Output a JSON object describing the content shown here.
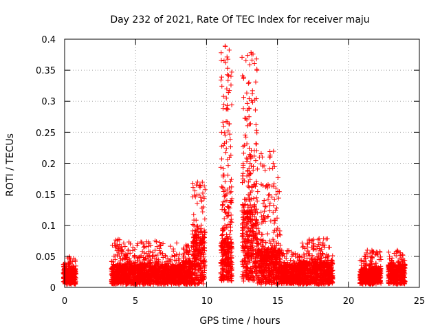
{
  "chart_data": {
    "type": "scatter",
    "title": "Day 232 of 2021, Rate Of TEC Index for receiver maju",
    "xlabel": "GPS time / hours",
    "ylabel": "ROTI / TECUs",
    "xlim": [
      0,
      25
    ],
    "ylim": [
      0,
      0.4
    ],
    "xticks": [
      "0",
      "5",
      "10",
      "15",
      "20",
      "25"
    ],
    "yticks": [
      "0",
      "0.05",
      "0.1",
      "0.15",
      "0.2",
      "0.25",
      "0.3",
      "0.35",
      "0.4"
    ],
    "grid": true,
    "marker": "+",
    "color": "#ff0000",
    "clusters": [
      {
        "x": [
          -0.1,
          0.8
        ],
        "base": [
          0.005,
          0.03
        ],
        "peak": 0.05
      },
      {
        "x": [
          3.3,
          4.4
        ],
        "base": [
          0.005,
          0.035
        ],
        "peak": 0.08
      },
      {
        "x": [
          4.4,
          8.3
        ],
        "base": [
          0.005,
          0.035
        ],
        "peak": 0.075
      },
      {
        "x": [
          8.3,
          9.0
        ],
        "base": [
          0.005,
          0.04
        ],
        "peak": 0.07
      },
      {
        "x": [
          9.0,
          9.9
        ],
        "base": [
          0.005,
          0.08
        ],
        "peak": 0.17
      },
      {
        "x": [
          11.0,
          11.8
        ],
        "base": [
          0.01,
          0.07
        ],
        "peak": 0.39
      },
      {
        "x": [
          12.5,
          13.6
        ],
        "base": [
          0.01,
          0.12
        ],
        "peak": 0.38
      },
      {
        "x": [
          13.6,
          15.2
        ],
        "base": [
          0.005,
          0.06
        ],
        "peak": 0.22
      },
      {
        "x": [
          15.2,
          16.6
        ],
        "base": [
          0.005,
          0.035
        ],
        "peak": 0.06
      },
      {
        "x": [
          16.6,
          18.9
        ],
        "base": [
          0.005,
          0.04
        ],
        "peak": 0.08
      },
      {
        "x": [
          20.8,
          22.3
        ],
        "base": [
          0.005,
          0.03
        ],
        "peak": 0.06
      },
      {
        "x": [
          22.8,
          24.0
        ],
        "base": [
          0.005,
          0.035
        ],
        "peak": 0.06
      }
    ]
  }
}
